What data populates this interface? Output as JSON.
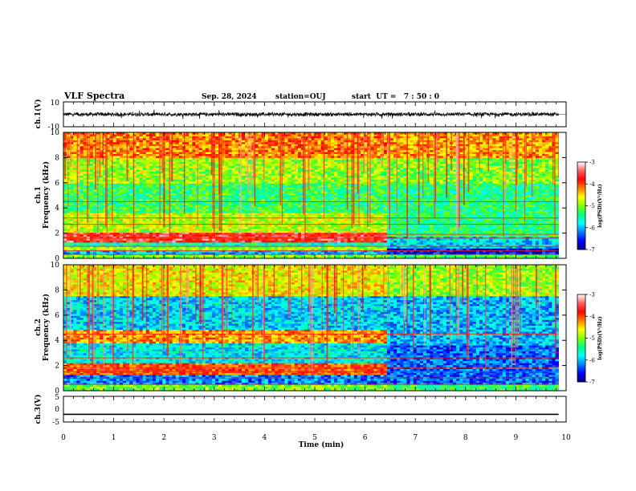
{
  "header": {
    "title": "VLF Spectra",
    "date": "Sep. 28, 2024",
    "station": "station=OUJ",
    "start": "start  UT =   7 : 50 : 0"
  },
  "chart_data": [
    {
      "type": "line",
      "panel": "ch1-waveform",
      "ylabel": "ch.1(V)",
      "ylim": [
        -10,
        10
      ],
      "yticks": [
        10,
        -10
      ],
      "baseline": 0,
      "signal": "noisy waveform, amplitude about ±1.5 V with sparse spikes to ±4 V",
      "color": "#000000"
    },
    {
      "type": "heatmap",
      "panel": "ch1-spectrogram",
      "ylabel_top": "ch.1",
      "ylabel_bottom": "Frequency (kHz)",
      "ylim": [
        0,
        10
      ],
      "yticks": [
        "0",
        "2",
        "4",
        "6",
        "8",
        "10"
      ],
      "x_end_min": 9.85,
      "transition_min": 6.45,
      "bands_before": [
        {
          "f_lo": 0.0,
          "f_hi": 0.3,
          "level": -5.0
        },
        {
          "f_lo": 0.3,
          "f_hi": 0.7,
          "level": -6.0
        },
        {
          "f_lo": 0.7,
          "f_hi": 1.0,
          "level": -4.9
        },
        {
          "f_lo": 1.0,
          "f_hi": 1.3,
          "level": -5.6
        },
        {
          "f_lo": 1.3,
          "f_hi": 2.1,
          "level": -3.6
        },
        {
          "f_lo": 2.1,
          "f_hi": 3.6,
          "level": -4.8
        },
        {
          "f_lo": 3.6,
          "f_hi": 6.0,
          "level": -5.3
        },
        {
          "f_lo": 6.0,
          "f_hi": 8.0,
          "level": -4.9
        },
        {
          "f_lo": 8.0,
          "f_hi": 10.0,
          "level": -4.2
        }
      ],
      "bands_after": [
        {
          "f_lo": 0.0,
          "f_hi": 0.3,
          "level": -5.2
        },
        {
          "f_lo": 0.3,
          "f_hi": 0.8,
          "level": -6.6
        },
        {
          "f_lo": 0.8,
          "f_hi": 1.7,
          "level": -5.9
        },
        {
          "f_lo": 1.7,
          "f_hi": 3.6,
          "level": -5.4
        },
        {
          "f_lo": 3.6,
          "f_hi": 6.0,
          "level": -5.4
        },
        {
          "f_lo": 6.0,
          "f_hi": 8.0,
          "level": -5.0
        },
        {
          "f_lo": 8.0,
          "f_hi": 10.0,
          "level": -4.3
        }
      ],
      "tone_lines_khz": [
        4.5,
        3.2,
        2.7,
        1.9,
        1.6,
        0.95,
        0.6,
        0.3
      ]
    },
    {
      "type": "heatmap",
      "panel": "ch2-spectrogram",
      "ylabel_top": "ch.2",
      "ylabel_bottom": "Frequency (kHz)",
      "ylim": [
        0,
        10
      ],
      "yticks": [
        "0",
        "2",
        "4",
        "6",
        "8",
        "10"
      ],
      "x_end_min": 9.85,
      "transition_min": 6.45,
      "bands_before": [
        {
          "f_lo": 0.0,
          "f_hi": 0.5,
          "level": -5.0
        },
        {
          "f_lo": 0.5,
          "f_hi": 1.2,
          "level": -6.2
        },
        {
          "f_lo": 1.2,
          "f_hi": 2.2,
          "level": -4.0
        },
        {
          "f_lo": 2.2,
          "f_hi": 3.8,
          "level": -5.8
        },
        {
          "f_lo": 3.8,
          "f_hi": 4.8,
          "level": -4.3
        },
        {
          "f_lo": 4.8,
          "f_hi": 7.5,
          "level": -5.9
        },
        {
          "f_lo": 7.5,
          "f_hi": 10.0,
          "level": -4.6
        }
      ],
      "bands_after": [
        {
          "f_lo": 0.0,
          "f_hi": 0.5,
          "level": -5.3
        },
        {
          "f_lo": 0.5,
          "f_hi": 3.6,
          "level": -6.3
        },
        {
          "f_lo": 3.6,
          "f_hi": 7.5,
          "level": -6.0
        },
        {
          "f_lo": 7.5,
          "f_hi": 10.0,
          "level": -4.9
        }
      ],
      "tone_lines_khz": [
        4.5,
        2.6,
        1.8,
        1.5,
        1.0,
        0.5
      ]
    },
    {
      "type": "line",
      "panel": "ch3-waveform",
      "ylabel": "ch.3(V)",
      "ylim": [
        -5,
        5
      ],
      "yticks": [
        5,
        0,
        -5
      ],
      "signal": "constant value",
      "value": -2,
      "color": "#000000"
    }
  ],
  "xaxis": {
    "label": "Time (min)",
    "range": [
      0,
      10
    ],
    "ticks": [
      "0",
      "1",
      "2",
      "3",
      "4",
      "5",
      "6",
      "7",
      "8",
      "9",
      "10"
    ]
  },
  "colorbar": {
    "label": "log(PSD)(V²/Hz)",
    "range": [
      -7,
      -3
    ],
    "ticks": [
      "-3",
      "-4",
      "-5",
      "-6",
      "-7"
    ],
    "colors": [
      "#000080",
      "#0000ff",
      "#0080ff",
      "#00ffff",
      "#00ff80",
      "#80ff00",
      "#ffff00",
      "#ff8000",
      "#ff0000",
      "#ff6060",
      "#ffffff"
    ]
  }
}
